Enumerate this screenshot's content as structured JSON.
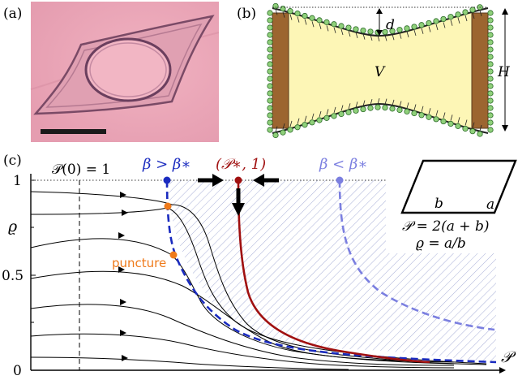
{
  "panels": {
    "a": {
      "label": "(a)"
    },
    "b": {
      "label": "(b)",
      "dim_d": "d",
      "dim_V": "V",
      "dim_H": "H"
    },
    "c": {
      "label": "(c)",
      "init_label": "𝒫(0) = 1",
      "beta_gt": "β > β∗",
      "fixed_point": "(𝒫∗, 1)",
      "beta_lt": "β < β∗",
      "puncture": "puncture",
      "y_axis": "ϱ",
      "x_axis": "𝒫",
      "tick_1": "1",
      "tick_05": "0.5",
      "tick_0": "0"
    },
    "inset": {
      "side_a": "a",
      "side_b": "b",
      "eq_perimeter": "𝒫 = 2(a + b)",
      "eq_ratio": "ϱ = a/b"
    }
  },
  "colors": {
    "blue": "#1a2bbf",
    "dark_red": "#a01010",
    "light_blue": "#7b7fe0",
    "orange": "#ef7a1a",
    "wood": "#9c6530",
    "fluid": "#fdf6b6",
    "bead": "#8fd07a",
    "photo_bg": "#e8a3b3"
  }
}
